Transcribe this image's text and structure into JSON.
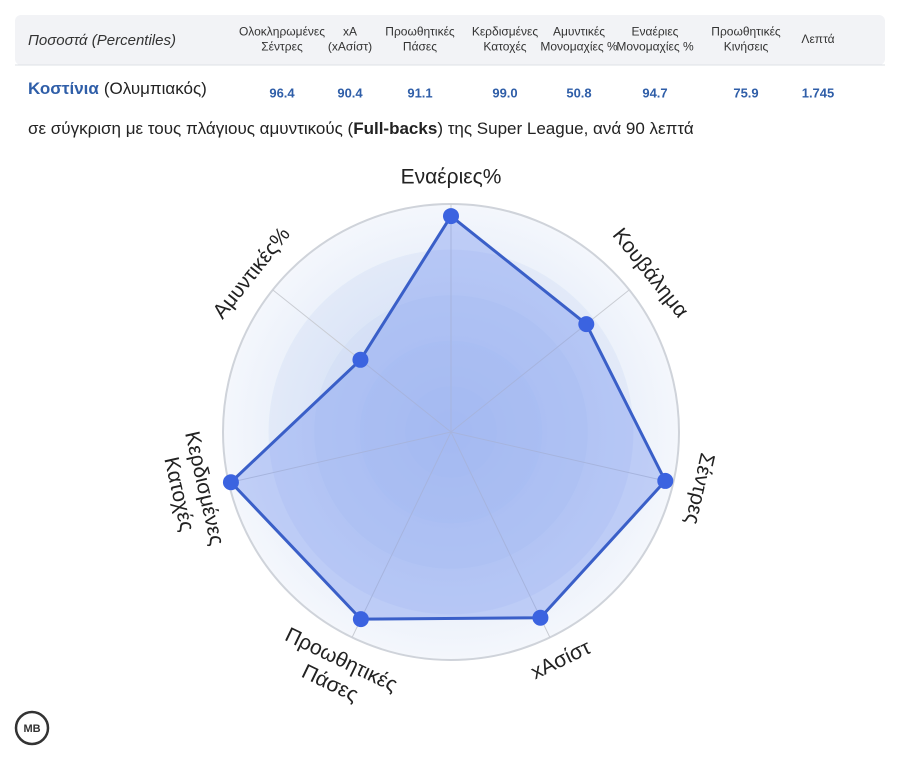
{
  "table": {
    "header": {
      "label": "Ποσοστά (Percentiles)",
      "columns": [
        [
          "Ολοκληρωμένες",
          "Σέντρες"
        ],
        [
          "xA",
          "(xΑσίστ)"
        ],
        [
          "Προωθητικές",
          "Πάσες"
        ],
        [
          "Κερδισμένες",
          "Κατοχές"
        ],
        [
          "Αμυντικές",
          "Μονομαχίες %"
        ],
        [
          "Εναέριες",
          "Μονομαχίες %"
        ],
        [
          "Προωθητικές",
          "Κινήσεις"
        ],
        [
          "Λεπτά"
        ]
      ]
    },
    "row": {
      "player": "Κοστίνια",
      "team": "(Ολυμπιακός)",
      "values": [
        "96.4",
        "90.4",
        "91.1",
        "99.0",
        "50.8",
        "94.7",
        "75.9",
        "1.745"
      ]
    }
  },
  "subtitle": {
    "before": "σε σύγκριση με τους πλάγιους αμυντικούς (",
    "bold": "Full-backs",
    "after": ") της Super League, ανά 90 λεπτά"
  },
  "logo": "MB",
  "chart_data": {
    "type": "radar",
    "categories": [
      [
        "Εναέριες%"
      ],
      [
        "Κουβάλημα"
      ],
      [
        "Σέντρες"
      ],
      [
        "xΑσίστ"
      ],
      [
        "Προωθητικές",
        "Πάσες"
      ],
      [
        "Κερδισμένες",
        "Κατοχές"
      ],
      [
        "Αμυντικές%"
      ]
    ],
    "values": [
      94.7,
      75.9,
      96.4,
      90.4,
      91.1,
      99.0,
      50.8
    ],
    "rlim": [
      0,
      100
    ],
    "color": "#3a5fc8"
  }
}
